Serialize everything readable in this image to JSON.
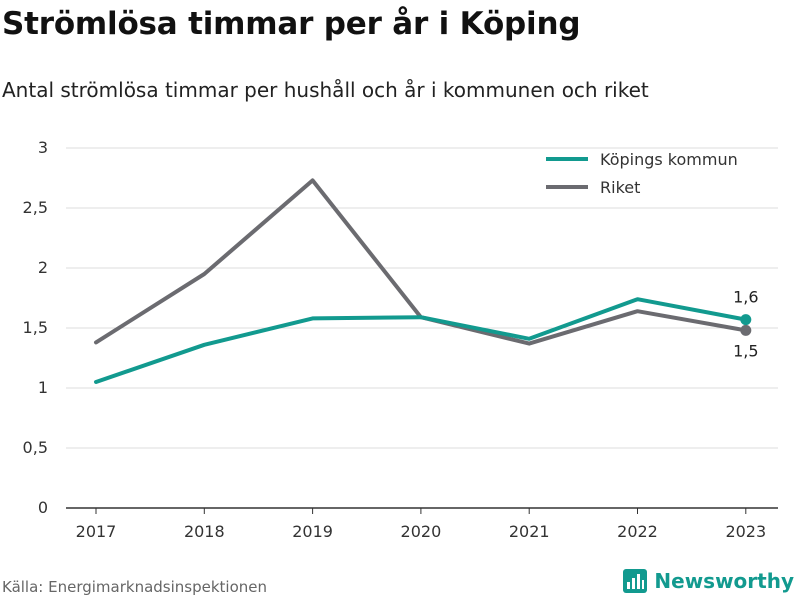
{
  "header": {
    "title": "Strömlösa timmar per år i Köping",
    "subtitle": "Antal strömlösa timmar per hushåll och år i kommunen och riket"
  },
  "footer": {
    "source": "Källa: Energimarknadsinspektionen",
    "brand": "Newsworthy"
  },
  "colors": {
    "kommun": "#129a8f",
    "riket": "#6b6b70",
    "grid": "#dddddd",
    "axis": "#333333"
  },
  "chart_data": {
    "type": "line",
    "title": "Strömlösa timmar per år i Köping",
    "subtitle": "Antal strömlösa timmar per hushåll och år i kommunen och riket",
    "xlabel": "",
    "ylabel": "",
    "categories": [
      "2017",
      "2018",
      "2019",
      "2020",
      "2021",
      "2022",
      "2023"
    ],
    "ylim": [
      0,
      3
    ],
    "yticks": [
      0,
      0.5,
      1,
      1.5,
      2,
      2.5,
      3
    ],
    "ytick_labels": [
      "0",
      "0,5",
      "1",
      "1,5",
      "2",
      "2,5",
      "3"
    ],
    "grid": true,
    "legend": "top-right",
    "series": [
      {
        "name": "Köpings kommun",
        "key": "kommun",
        "values": [
          1.05,
          1.36,
          1.58,
          1.59,
          1.41,
          1.74,
          1.57
        ],
        "end_label": "1,6"
      },
      {
        "name": "Riket",
        "key": "riket",
        "values": [
          1.38,
          1.95,
          2.73,
          1.59,
          1.37,
          1.64,
          1.48
        ],
        "end_label": "1,5"
      }
    ]
  }
}
